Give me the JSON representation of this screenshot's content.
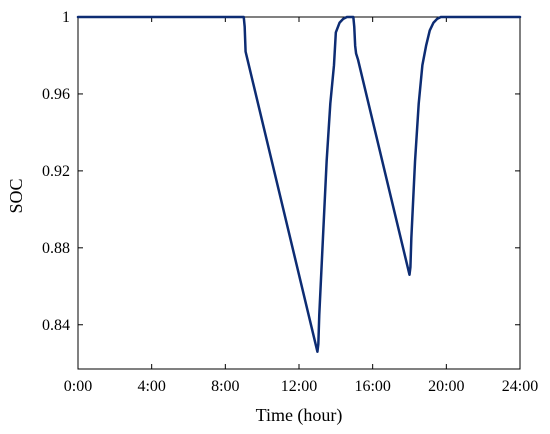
{
  "chart_data": {
    "type": "line",
    "title": "",
    "xlabel": "Time (hour)",
    "ylabel": "SOC",
    "xlim": [
      0,
      24
    ],
    "ylim": [
      0.817,
      1.0
    ],
    "grid": false,
    "legend": "none",
    "x_ticks": [
      0,
      4,
      8,
      12,
      16,
      20,
      24
    ],
    "x_tick_labels": [
      "0:00",
      "4:00",
      "8:00",
      "12:00",
      "16:00",
      "20:00",
      "24:00"
    ],
    "y_ticks": [
      0.84,
      0.88,
      0.92,
      0.96,
      1.0
    ],
    "y_tick_labels": [
      "0.84",
      "0.88",
      "0.92",
      "0.96",
      "1"
    ],
    "series": [
      {
        "color": "#0d2c73",
        "x": [
          0,
          9.0,
          9.05,
          9.1,
          9.2,
          13.0,
          13.05,
          13.1,
          13.3,
          13.5,
          13.7,
          13.9,
          14.0,
          14.2,
          14.4,
          14.6,
          14.8,
          14.95,
          15.0,
          15.05,
          15.1,
          15.2,
          18.0,
          18.05,
          18.1,
          18.3,
          18.5,
          18.7,
          18.9,
          19.1,
          19.3,
          19.5,
          19.7,
          24
        ],
        "y": [
          1.0,
          1.0,
          0.995,
          0.982,
          0.978,
          0.826,
          0.83,
          0.845,
          0.885,
          0.925,
          0.955,
          0.975,
          0.992,
          0.997,
          0.999,
          1.0,
          1.0,
          1.0,
          0.995,
          0.985,
          0.981,
          0.978,
          0.866,
          0.87,
          0.885,
          0.925,
          0.955,
          0.975,
          0.985,
          0.993,
          0.997,
          0.999,
          1.0,
          1.0
        ]
      }
    ]
  }
}
